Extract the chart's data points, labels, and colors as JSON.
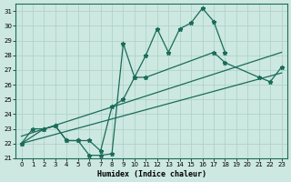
{
  "xlabel": "Humidex (Indice chaleur)",
  "bg_color": "#cce8e0",
  "grid_color": "#aacfc8",
  "line_color": "#1a6b5a",
  "xlim": [
    -0.5,
    23.5
  ],
  "ylim": [
    21,
    31.5
  ],
  "yticks": [
    21,
    22,
    23,
    24,
    25,
    26,
    27,
    28,
    29,
    30,
    31
  ],
  "xticks": [
    0,
    1,
    2,
    3,
    4,
    5,
    6,
    7,
    8,
    9,
    10,
    11,
    12,
    13,
    14,
    15,
    16,
    17,
    18,
    19,
    20,
    21,
    22,
    23
  ],
  "series1_x": [
    0,
    1,
    2,
    3,
    4,
    5,
    6,
    7,
    8,
    9,
    10,
    11,
    12,
    13,
    14,
    15,
    16,
    17,
    18
  ],
  "series1_y": [
    22.0,
    23.0,
    23.0,
    23.2,
    22.2,
    22.2,
    21.2,
    21.2,
    21.3,
    28.8,
    26.5,
    28.0,
    29.8,
    28.2,
    29.8,
    30.2,
    31.2,
    30.3,
    28.2
  ],
  "series2_x": [
    0,
    2,
    3,
    4,
    5,
    6,
    7,
    8,
    9,
    10,
    11,
    17,
    18,
    21,
    22,
    23
  ],
  "series2_y": [
    22.0,
    23.0,
    23.2,
    22.2,
    22.2,
    22.2,
    21.5,
    24.5,
    25.0,
    26.5,
    26.5,
    28.2,
    27.5,
    26.5,
    26.2,
    27.2
  ],
  "trend1_x": [
    0,
    23
  ],
  "trend1_y": [
    22.5,
    28.2
  ],
  "trend2_x": [
    0,
    23
  ],
  "trend2_y": [
    22.0,
    26.8
  ]
}
